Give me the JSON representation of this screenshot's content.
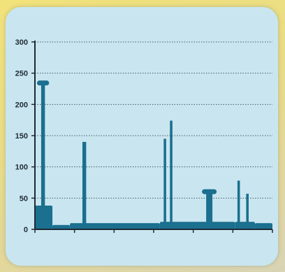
{
  "chart_data": {
    "type": "bar",
    "title": "",
    "xlabel": "",
    "ylabel": "",
    "ylim": [
      0,
      300
    ],
    "yticks": [
      0,
      50,
      100,
      150,
      200,
      250,
      300
    ],
    "grid": true,
    "bar_color": "#1b6f8f",
    "baseline_segments": [
      {
        "x_start": 0,
        "x_end": 7,
        "value": 38
      },
      {
        "x_start": 7,
        "x_end": 14,
        "value": 7
      },
      {
        "x_start": 14,
        "x_end": 50,
        "value": 10
      },
      {
        "x_start": 50,
        "x_end": 80,
        "value": 12
      },
      {
        "x_start": 80,
        "x_end": 88,
        "value": 12
      },
      {
        "x_start": 88,
        "x_end": 95,
        "value": 10
      }
    ],
    "peaks": [
      {
        "x_start": 2.5,
        "x_end": 4,
        "value": 236,
        "cap": true
      },
      {
        "x_start": 19,
        "x_end": 20.5,
        "value": 140,
        "cap": false
      },
      {
        "x_start": 51.5,
        "x_end": 52.5,
        "value": 145,
        "cap": false
      },
      {
        "x_start": 54,
        "x_end": 55,
        "value": 174,
        "cap": false
      },
      {
        "x_start": 68.5,
        "x_end": 71,
        "value": 62,
        "cap": true
      },
      {
        "x_start": 81,
        "x_end": 82,
        "value": 78,
        "cap": false
      },
      {
        "x_start": 84.5,
        "x_end": 85.5,
        "value": 57,
        "cap": false
      }
    ],
    "xlim": [
      0,
      95
    ]
  }
}
